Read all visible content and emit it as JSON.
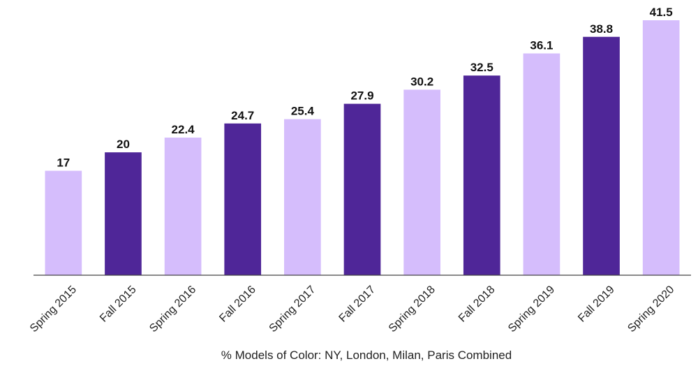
{
  "chart_data": {
    "type": "bar",
    "categories": [
      "Spring 2015",
      "Fall 2015",
      "Spring 2016",
      "Fall 2016",
      "Spring 2017",
      "Fall 2017",
      "Spring 2018",
      "Fall 2018",
      "Spring 2019",
      "Fall 2019",
      "Spring 2020"
    ],
    "values": [
      17,
      20,
      22.4,
      24.7,
      25.4,
      27.9,
      30.2,
      32.5,
      36.1,
      38.8,
      41.5
    ],
    "value_labels": [
      "17",
      "20",
      "22.4",
      "24.7",
      "25.4",
      "27.9",
      "30.2",
      "32.5",
      "36.1",
      "38.8",
      "41.5"
    ],
    "title": "",
    "xlabel": "% Models of Color: NY, London, Milan, Paris Combined",
    "ylabel": "",
    "ylim": [
      0,
      41.5
    ],
    "grid": false,
    "legend": "none",
    "colors": {
      "spring": "#d5bdfc",
      "fall": "#4f2698",
      "axis": "#444444"
    }
  }
}
